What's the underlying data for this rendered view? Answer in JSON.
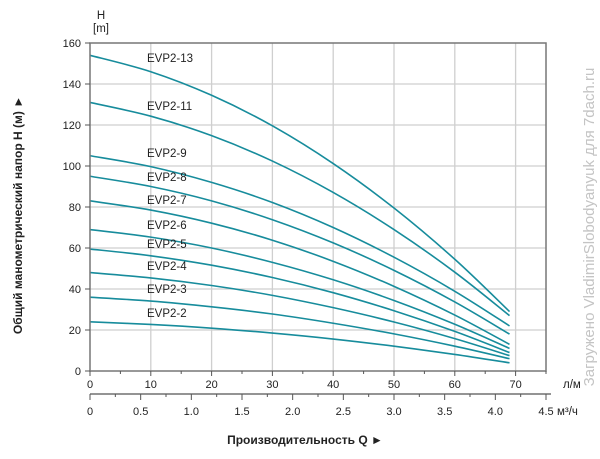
{
  "chart_data": {
    "type": "line",
    "title": "",
    "ylabel": "Общий манометрический напор H (м) ►",
    "yunit_top": "H",
    "yunit_bottom": "[m]",
    "xlabel": "Производительность Q ►",
    "x_unit_primary": "л/м",
    "x_unit_secondary": "м³/ч",
    "xlim": [
      0,
      75
    ],
    "ylim": [
      0,
      160
    ],
    "x_ticks": [
      "0",
      "10",
      "20",
      "30",
      "40",
      "50",
      "60",
      "70"
    ],
    "x_secondary_ticks": [
      "0",
      "0.5",
      "1.0",
      "1.5",
      "2.0",
      "2.5",
      "3.0",
      "3.5",
      "4.0",
      "4.5"
    ],
    "y_ticks": [
      "0",
      "20",
      "40",
      "60",
      "80",
      "100",
      "120",
      "140",
      "160"
    ],
    "grid": true,
    "line_color": "#178c9c",
    "x": [
      0,
      10,
      20,
      30,
      40,
      50,
      60,
      69
    ],
    "series": [
      {
        "name": "EVP2-13",
        "values": [
          154,
          146,
          134.5,
          119.6,
          101.2,
          79.5,
          54.5,
          29
        ]
      },
      {
        "name": "EVP2-11",
        "values": [
          131,
          124.3,
          114.8,
          102.4,
          87.1,
          69,
          48.2,
          27
        ]
      },
      {
        "name": "EVP2-9",
        "values": [
          105,
          99.7,
          92,
          82.2,
          70,
          55.5,
          38.9,
          22
        ]
      },
      {
        "name": "EVP2-8",
        "values": [
          95,
          90,
          83,
          73.8,
          62.5,
          49.1,
          33.7,
          18
        ]
      },
      {
        "name": "EVP2-7",
        "values": [
          83,
          78.5,
          72.1,
          63.8,
          53.5,
          41.3,
          27.3,
          13
        ]
      },
      {
        "name": "EVP2-6",
        "values": [
          69,
          65.3,
          60,
          53,
          44.5,
          34.4,
          22.8,
          11
        ]
      },
      {
        "name": "EVP2-5",
        "values": [
          59.5,
          56.2,
          51.6,
          45.6,
          38.2,
          29.4,
          19.3,
          9
        ]
      },
      {
        "name": "EVP2-4",
        "values": [
          48,
          45.4,
          41.7,
          36.9,
          30.9,
          23.9,
          15.8,
          7.5
        ]
      },
      {
        "name": "EVP2-3",
        "values": [
          36,
          34.1,
          31.3,
          27.8,
          23.3,
          18.1,
          12.1,
          6
        ]
      },
      {
        "name": "EVP2-2",
        "values": [
          24,
          22.7,
          20.9,
          18.5,
          15.6,
          12.1,
          8.1,
          4
        ]
      }
    ]
  },
  "watermark": "Загружено VladimirSlobodyanyuk для 7dach.ru"
}
